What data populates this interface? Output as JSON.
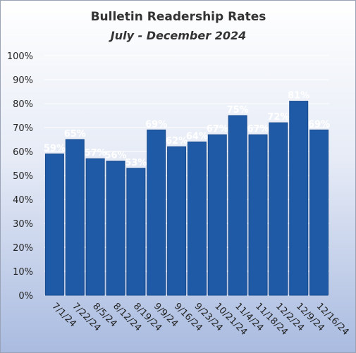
{
  "chart_data": {
    "type": "bar",
    "title": "Bulletin Readership Rates",
    "subtitle": "July - December 2024",
    "xlabel": "",
    "ylabel": "",
    "categories": [
      "7/1/24",
      "7/22/24",
      "8/5/24",
      "8/12/24",
      "8/19/24",
      "9/9/24",
      "9/16/24",
      "9/23/24",
      "10/21/24",
      "11/4/24",
      "11/18/24",
      "12/2/24",
      "12/9/24",
      "12/16/24"
    ],
    "values": [
      59,
      65,
      57,
      56,
      53,
      69,
      62,
      64,
      67,
      75,
      67,
      72,
      81,
      69
    ],
    "data_labels": [
      "59%",
      "65%",
      "57%",
      "56%",
      "53%",
      "69%",
      "62%",
      "64%",
      "67%",
      "75%",
      "67%",
      "72%",
      "81%",
      "69%"
    ],
    "yticks": [
      "0%",
      "10%",
      "20%",
      "30%",
      "40%",
      "50%",
      "60%",
      "70%",
      "80%",
      "90%",
      "100%"
    ],
    "ylim": [
      0,
      100
    ],
    "grid": true,
    "legend": "none",
    "bar_color": "#1f5aa6"
  }
}
